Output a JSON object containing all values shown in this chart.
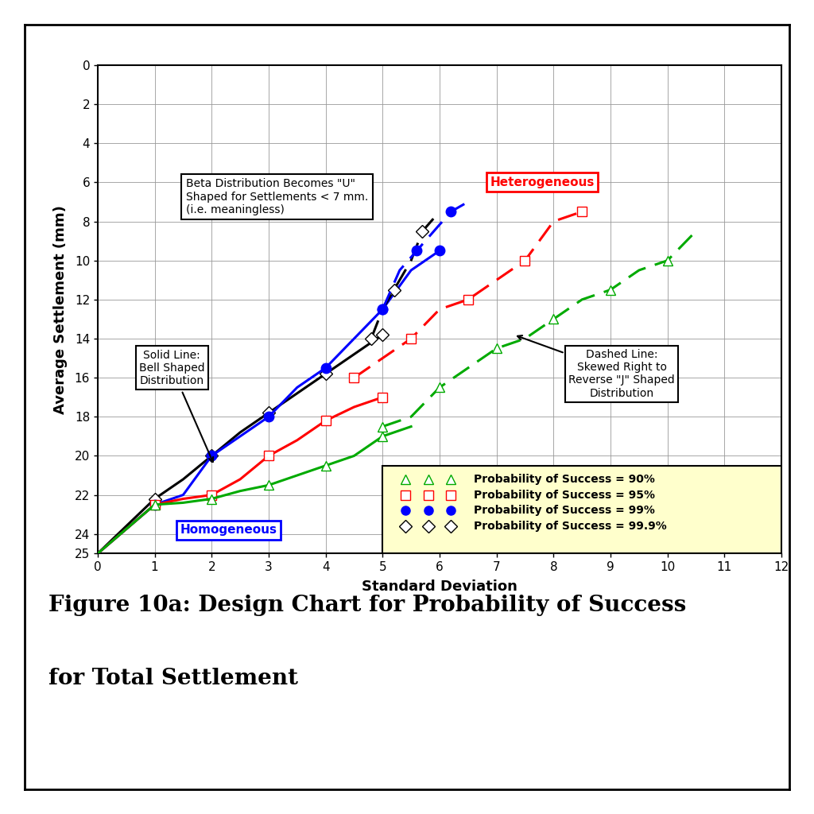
{
  "xlabel": "Standard Deviation",
  "ylabel": "Average Settlement (mm)",
  "xlim": [
    0,
    12
  ],
  "ylim": [
    25,
    0
  ],
  "yticks": [
    0,
    2,
    4,
    6,
    8,
    10,
    12,
    14,
    16,
    18,
    20,
    22,
    24,
    25
  ],
  "xticks": [
    0,
    1,
    2,
    3,
    4,
    5,
    6,
    7,
    8,
    9,
    10,
    11,
    12
  ],
  "solid_999_x": [
    0,
    1.0,
    1.5,
    2.0,
    2.5,
    3.0,
    3.5,
    4.0,
    4.5,
    5.0
  ],
  "solid_999_y": [
    25,
    22.2,
    21.2,
    20.0,
    18.8,
    17.8,
    16.8,
    15.8,
    14.8,
    13.8
  ],
  "solid_99_x": [
    0,
    1.0,
    1.5,
    2.0,
    2.5,
    3.0,
    3.5,
    4.0,
    4.5,
    5.0,
    5.5,
    6.0
  ],
  "solid_99_y": [
    25,
    22.5,
    22.0,
    20.0,
    19.0,
    18.0,
    16.5,
    15.5,
    14.0,
    12.5,
    10.5,
    9.5
  ],
  "solid_95_x": [
    0,
    1.0,
    1.5,
    2.0,
    2.5,
    3.0,
    3.5,
    4.0,
    4.5,
    5.0
  ],
  "solid_95_y": [
    25,
    22.5,
    22.2,
    22.0,
    21.2,
    20.0,
    19.2,
    18.2,
    17.5,
    17.0
  ],
  "solid_90_x": [
    0,
    1.0,
    1.5,
    2.0,
    2.5,
    3.0,
    3.5,
    4.0,
    4.5,
    5.0,
    5.5
  ],
  "solid_90_y": [
    25,
    22.5,
    22.4,
    22.2,
    21.8,
    21.5,
    21.0,
    20.5,
    20.0,
    19.0,
    18.5
  ],
  "dash_999_x": [
    4.8,
    5.0,
    5.2,
    5.5,
    5.7,
    6.0
  ],
  "dash_999_y": [
    14.0,
    12.5,
    11.5,
    10.0,
    8.5,
    7.5
  ],
  "dash_99_x": [
    5.0,
    5.3,
    5.6,
    5.9,
    6.2,
    6.5
  ],
  "dash_99_y": [
    12.5,
    10.5,
    9.5,
    8.5,
    7.5,
    7.0
  ],
  "dash_95_x": [
    4.5,
    5.0,
    5.5,
    6.0,
    6.5,
    7.0,
    7.5,
    8.0,
    8.5
  ],
  "dash_95_y": [
    16.0,
    15.0,
    14.0,
    12.5,
    12.0,
    11.0,
    10.0,
    8.0,
    7.5
  ],
  "dash_90_x": [
    5.0,
    5.5,
    6.0,
    6.5,
    7.0,
    7.5,
    8.0,
    8.5,
    9.0,
    9.5,
    10.0,
    10.5
  ],
  "dash_90_y": [
    18.5,
    18.0,
    16.5,
    15.5,
    14.5,
    14.0,
    13.0,
    12.0,
    11.5,
    10.5,
    10.0,
    8.5
  ],
  "color_90": "#00aa00",
  "color_95": "#ff0000",
  "color_99": "#0000ff",
  "color_999": "#000000",
  "bg_color": "#ffffff",
  "grid_color": "#999999",
  "legend_bg": "#ffffcc",
  "figure_title_line1": "Figure 10a: Design Chart for Probability of Success",
  "figure_title_line2": "for Total Settlement"
}
